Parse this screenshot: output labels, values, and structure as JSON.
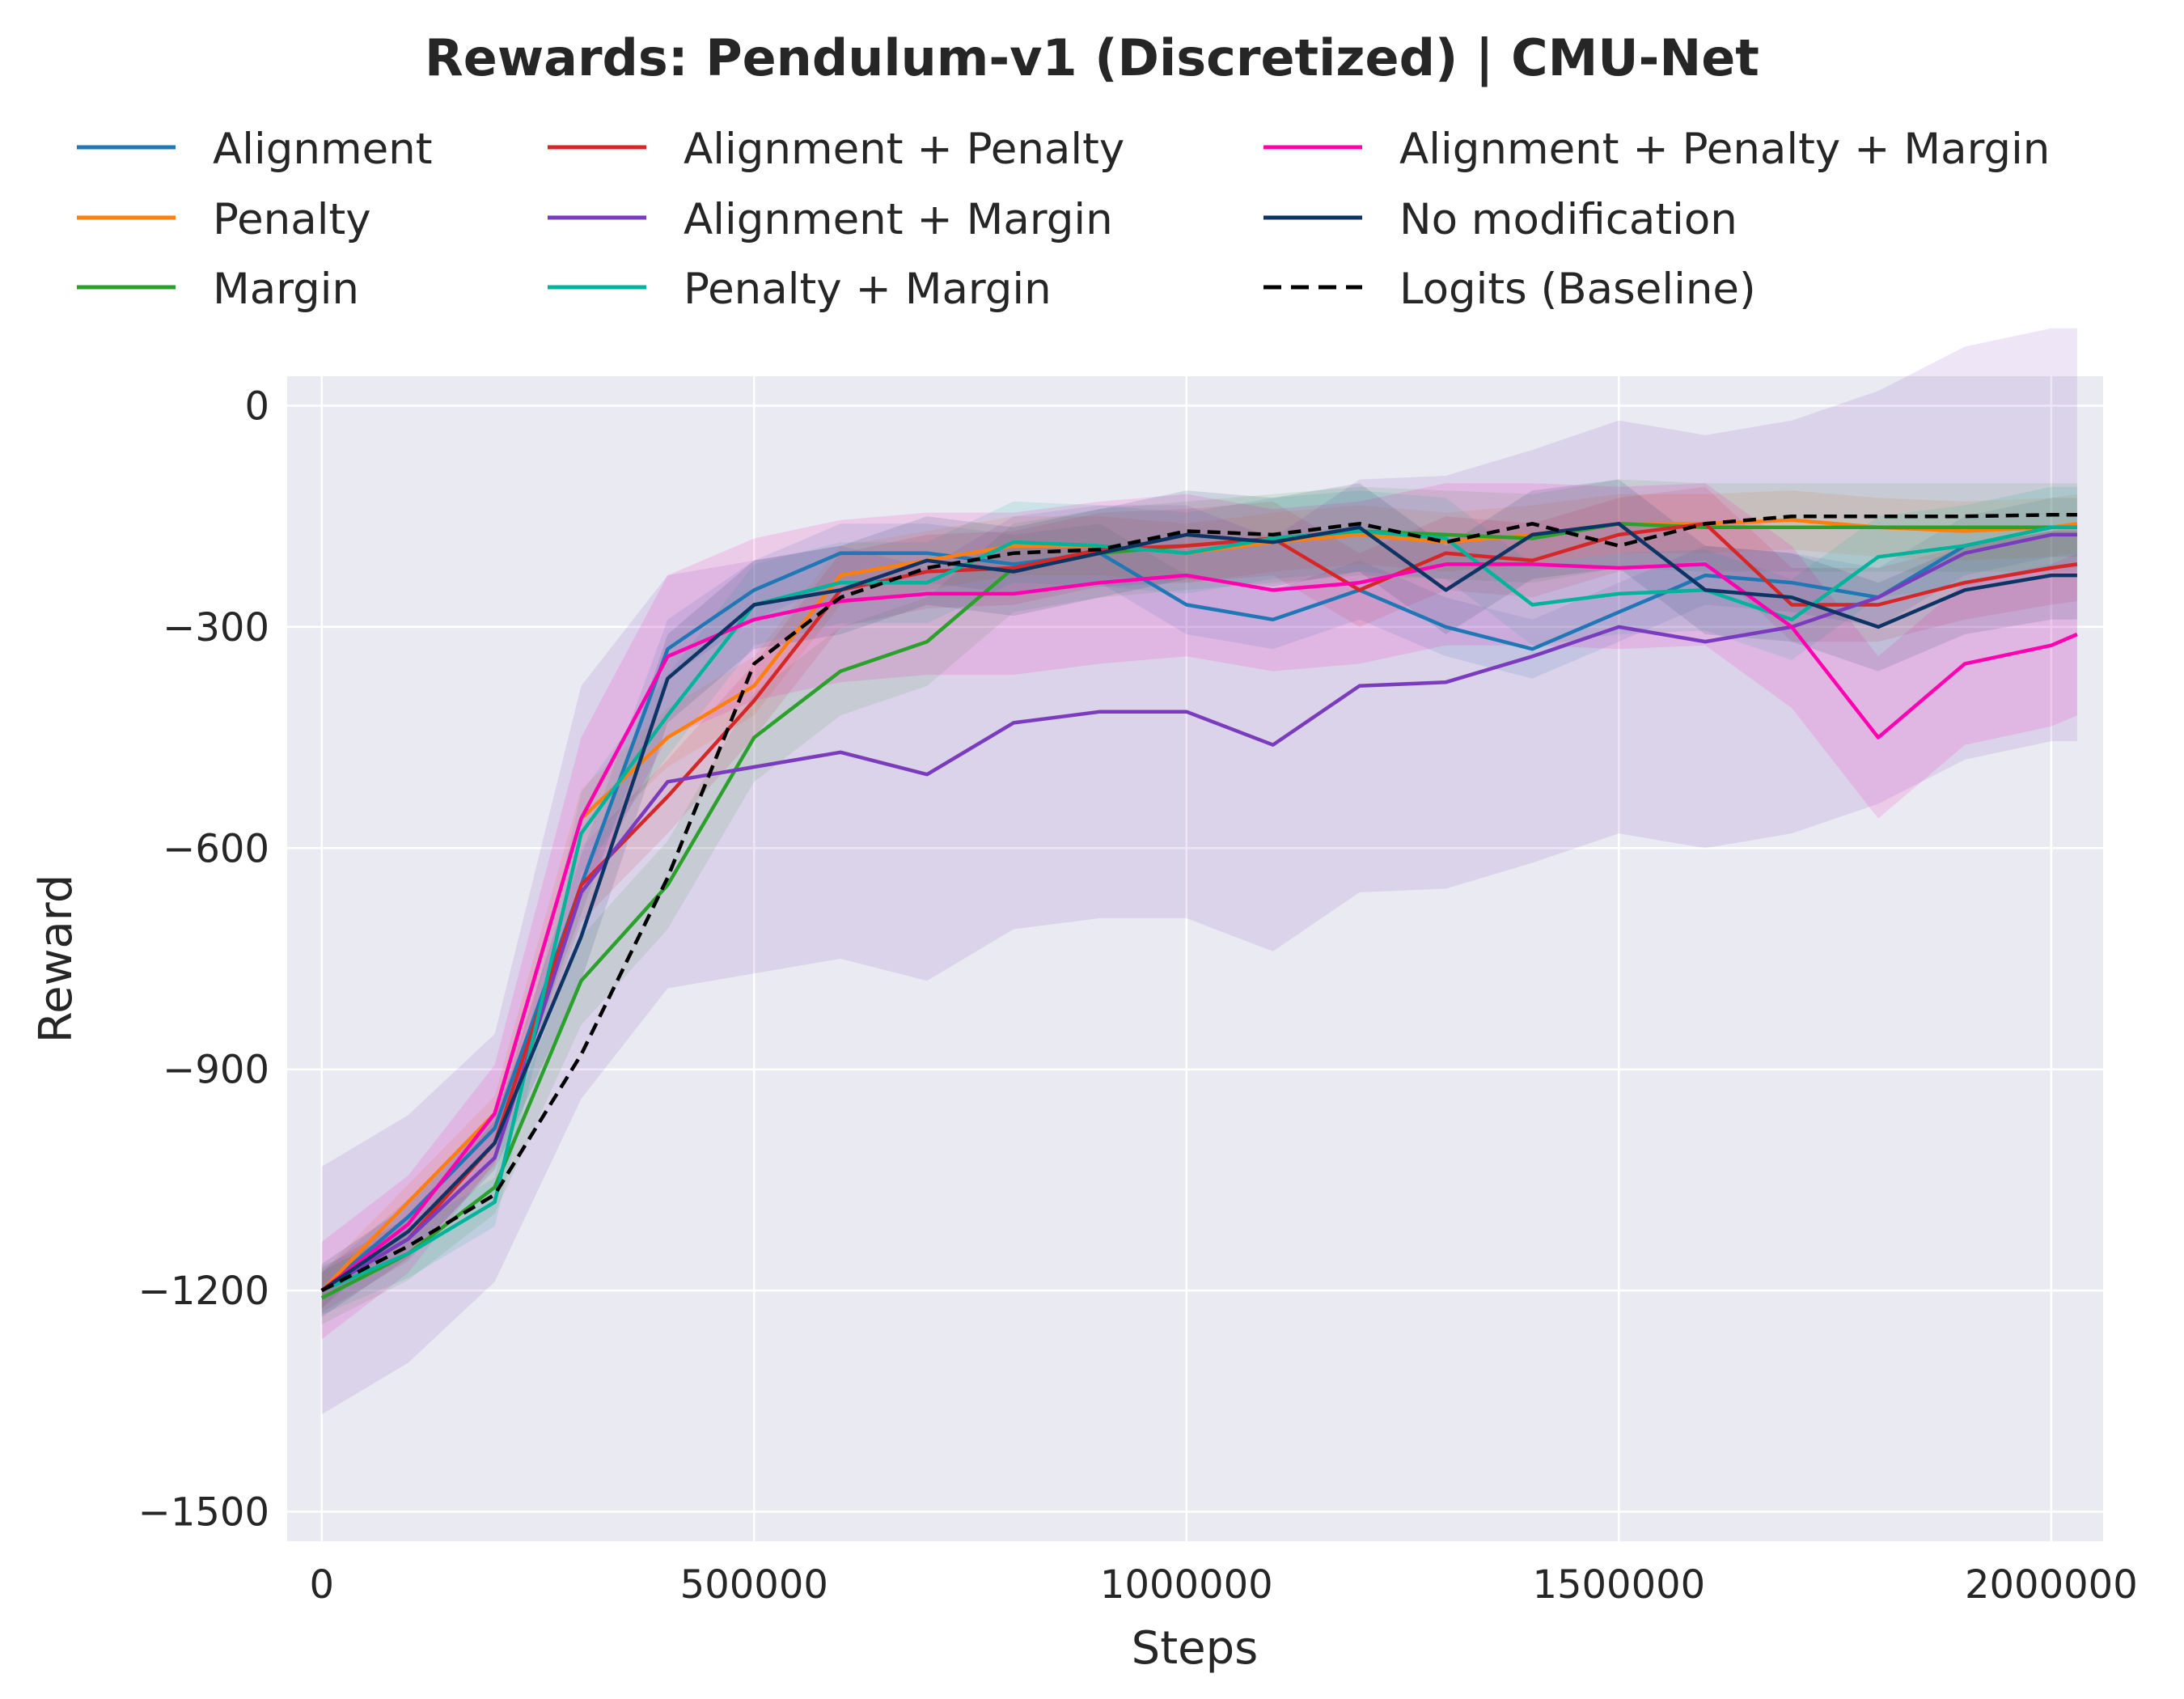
{
  "chart_data": {
    "type": "line",
    "title": "Rewards: Pendulum-v1 (Discretized) | CMU-Net",
    "xlabel": "Steps",
    "ylabel": "Reward",
    "xlim": [
      -40000,
      2060000
    ],
    "ylim": [
      -1540,
      40
    ],
    "xticks": [
      0,
      500000,
      1000000,
      1500000,
      2000000
    ],
    "xtick_labels": [
      "0",
      "500000",
      "1000000",
      "1500000",
      "2000000"
    ],
    "yticks": [
      0,
      -300,
      -600,
      -900,
      -1200,
      -1500
    ],
    "ytick_labels": [
      "0",
      "−300",
      "−600",
      "−900",
      "−1200",
      "−1500"
    ],
    "grid": true,
    "legend_position": "top, 3 columns",
    "background": "#eaeaf2",
    "x": [
      0,
      100000,
      200000,
      300000,
      400000,
      500000,
      600000,
      700000,
      800000,
      900000,
      1000000,
      1100000,
      1200000,
      1300000,
      1400000,
      1500000,
      1600000,
      1700000,
      1800000,
      1900000,
      2000000,
      2030000
    ],
    "series": [
      {
        "name": "Alignment",
        "color": "#1f77b4",
        "dash": false,
        "band": 40,
        "values": [
          -1200,
          -1100,
          -980,
          -650,
          -330,
          -250,
          -200,
          -200,
          -215,
          -200,
          -270,
          -290,
          -250,
          -300,
          -330,
          -280,
          -230,
          -240,
          -260,
          -190,
          -165,
          -165
        ]
      },
      {
        "name": "Penalty",
        "color": "#ff7f0e",
        "dash": false,
        "band": 40,
        "values": [
          -1200,
          -1080,
          -960,
          -560,
          -450,
          -380,
          -230,
          -210,
          -190,
          -190,
          -200,
          -185,
          -175,
          -185,
          -175,
          -160,
          -160,
          -155,
          -165,
          -170,
          -165,
          -160
        ]
      },
      {
        "name": "Margin",
        "color": "#2ca02c",
        "dash": false,
        "band": 60,
        "values": [
          -1210,
          -1150,
          -1060,
          -780,
          -650,
          -450,
          -360,
          -320,
          -220,
          -200,
          -190,
          -180,
          -170,
          -175,
          -180,
          -160,
          -165,
          -165,
          -165,
          -165,
          -165,
          -165
        ]
      },
      {
        "name": "Alignment + Penalty",
        "color": "#d62728",
        "dash": false,
        "band": 50,
        "values": [
          -1200,
          -1130,
          -1000,
          -650,
          -530,
          -400,
          -250,
          -225,
          -220,
          -195,
          -190,
          -180,
          -250,
          -200,
          -210,
          -175,
          -160,
          -270,
          -270,
          -240,
          -220,
          -215
        ]
      },
      {
        "name": "Alignment + Margin",
        "color": "#7b3bbd",
        "dash": false,
        "band": 280,
        "values": [
          -1200,
          -1130,
          -1020,
          -660,
          -510,
          -490,
          -470,
          -500,
          -430,
          -415,
          -415,
          -460,
          -380,
          -375,
          -340,
          -300,
          -320,
          -300,
          -260,
          -200,
          -175,
          -175
        ]
      },
      {
        "name": "Penalty + Margin",
        "color": "#00b39b",
        "dash": false,
        "band": 55,
        "values": [
          -1200,
          -1150,
          -1080,
          -580,
          -420,
          -270,
          -240,
          -240,
          -185,
          -190,
          -200,
          -180,
          -170,
          -180,
          -270,
          -255,
          -250,
          -290,
          -205,
          -190,
          -165,
          -165
        ]
      },
      {
        "name": "Alignment + Penalty + Margin",
        "color": "#ff00b0",
        "dash": false,
        "band": 110,
        "values": [
          -1200,
          -1110,
          -960,
          -560,
          -340,
          -290,
          -265,
          -255,
          -255,
          -240,
          -230,
          -250,
          -240,
          -215,
          -215,
          -220,
          -215,
          -300,
          -450,
          -350,
          -325,
          -310
        ]
      },
      {
        "name": "No modification",
        "color": "#0d3464",
        "dash": false,
        "band": 60,
        "values": [
          -1200,
          -1120,
          -1000,
          -720,
          -370,
          -270,
          -250,
          -210,
          -225,
          -200,
          -175,
          -185,
          -165,
          -250,
          -175,
          -160,
          -250,
          -260,
          -300,
          -250,
          -230,
          -230
        ]
      },
      {
        "name": "Logits (Baseline)",
        "color": "#000000",
        "dash": true,
        "band": 0,
        "values": [
          -1200,
          -1140,
          -1070,
          -880,
          -640,
          -350,
          -260,
          -220,
          -200,
          -195,
          -170,
          -175,
          -160,
          -185,
          -160,
          -190,
          -160,
          -150,
          -150,
          -150,
          -148,
          -148
        ]
      }
    ]
  }
}
